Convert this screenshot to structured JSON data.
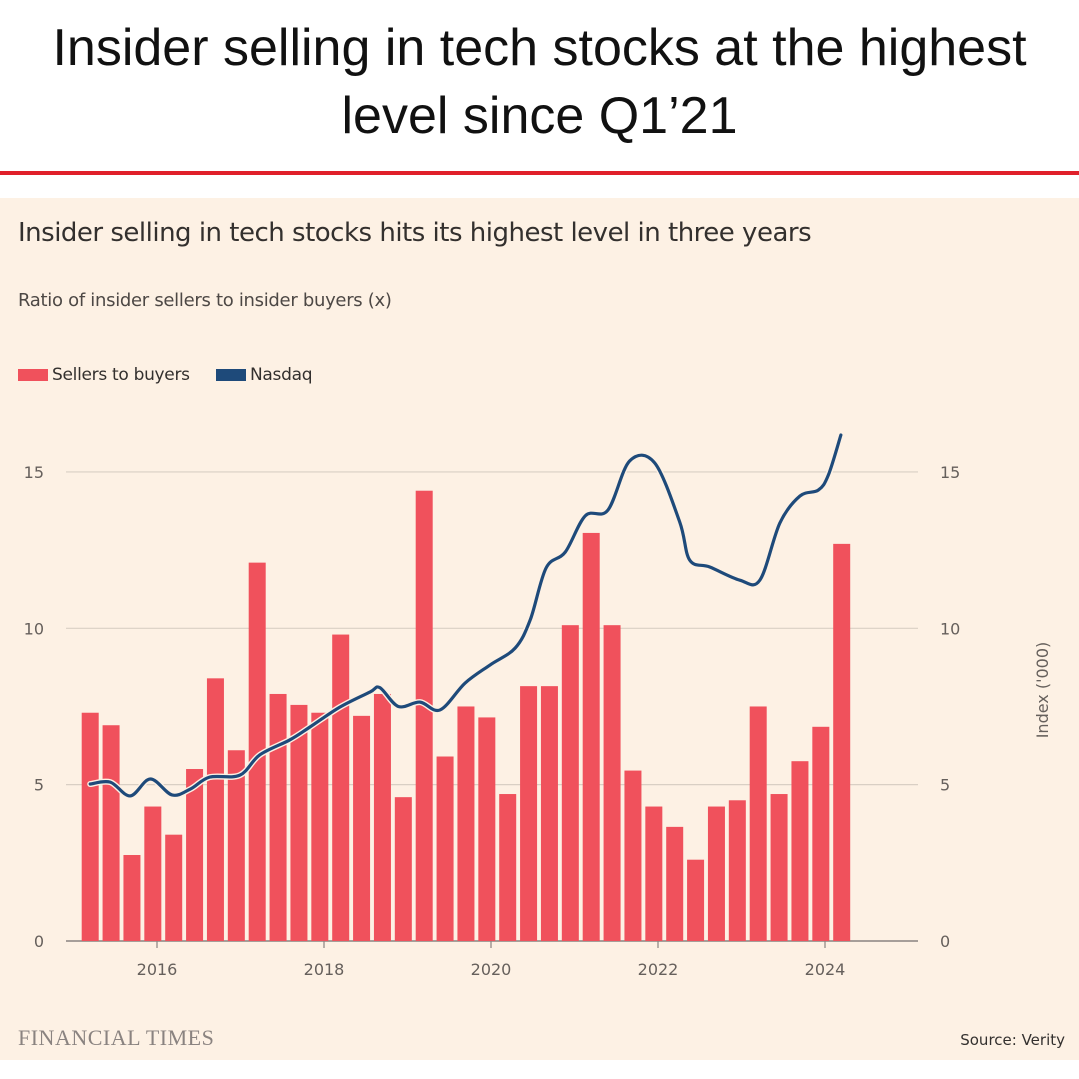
{
  "headline": "Insider selling in tech stocks at the highest level since Q1’21",
  "colors": {
    "accent_rule": "#e0202a",
    "bars": "#f0515c",
    "line": "#1e4a7a",
    "background": "#fdf1e4"
  },
  "footer": {
    "brand": "FINANCIAL TIMES",
    "source": "Source: Verity"
  },
  "chart_data": {
    "type": "bar+line",
    "title": "Insider selling in tech stocks hits its highest level in three years",
    "subtitle": "Ratio of insider sellers to insider buyers (x)",
    "legend": [
      "Sellers to buyers",
      "Nasdaq"
    ],
    "legend_position": "top-left",
    "ylabel_right": "Index ('000)",
    "ylim": [
      0,
      15
    ],
    "y_ticks": [
      "0",
      "5",
      "10",
      "15"
    ],
    "x_ticks": [
      "2016",
      "2018",
      "2020",
      "2022",
      "2024"
    ],
    "grid": true,
    "bars": {
      "name": "Sellers to buyers",
      "categories": [
        "2015 Q1",
        "2015 Q2",
        "2015 Q3",
        "2015 Q4",
        "2016 Q1",
        "2016 Q2",
        "2016 Q3",
        "2016 Q4",
        "2017 Q1",
        "2017 Q2",
        "2017 Q3",
        "2017 Q4",
        "2018 Q1",
        "2018 Q2",
        "2018 Q3",
        "2018 Q4",
        "2019 Q1",
        "2019 Q2",
        "2019 Q3",
        "2019 Q4",
        "2020 Q1",
        "2020 Q2",
        "2020 Q3",
        "2020 Q4",
        "2021 Q1",
        "2021 Q2",
        "2021 Q3",
        "2021 Q4",
        "2022 Q1",
        "2022 Q2",
        "2022 Q3",
        "2022 Q4",
        "2023 Q1",
        "2023 Q2",
        "2023 Q3",
        "2023 Q4",
        "2024 Q1"
      ],
      "values": [
        7.3,
        6.9,
        2.75,
        4.3,
        3.4,
        5.5,
        8.4,
        6.1,
        12.1,
        7.9,
        7.55,
        7.3,
        9.8,
        7.2,
        7.9,
        4.6,
        14.4,
        5.9,
        7.5,
        7.15,
        4.7,
        8.15,
        8.15,
        10.1,
        13.05,
        10.1,
        5.45,
        4.3,
        3.65,
        2.6,
        4.3,
        4.5,
        7.5,
        4.7,
        5.75,
        6.85,
        12.7
      ]
    },
    "line": {
      "name": "Nasdaq",
      "x": [
        2015.2,
        2015.44,
        2015.68,
        2015.92,
        2016.18,
        2016.4,
        2016.63,
        2016.99,
        2017.23,
        2017.59,
        2017.83,
        2018.19,
        2018.55,
        2018.67,
        2018.89,
        2019.15,
        2019.39,
        2019.69,
        2019.99,
        2020.29,
        2020.47,
        2020.66,
        2020.89,
        2021.13,
        2021.4,
        2021.66,
        2021.96,
        2022.26,
        2022.38,
        2022.62,
        2022.98,
        2023.22,
        2023.46,
        2023.7,
        2023.92,
        2024.04,
        2024.19
      ],
      "y": [
        5.02,
        5.08,
        4.64,
        5.18,
        4.67,
        4.86,
        5.24,
        5.3,
        5.95,
        6.43,
        6.84,
        7.48,
        7.96,
        8.1,
        7.5,
        7.64,
        7.39,
        8.25,
        8.83,
        9.37,
        10.27,
        11.93,
        12.44,
        13.6,
        13.78,
        15.35,
        15.29,
        13.4,
        12.18,
        11.96,
        11.54,
        11.54,
        13.37,
        14.23,
        14.42,
        14.9,
        16.18
      ]
    }
  }
}
